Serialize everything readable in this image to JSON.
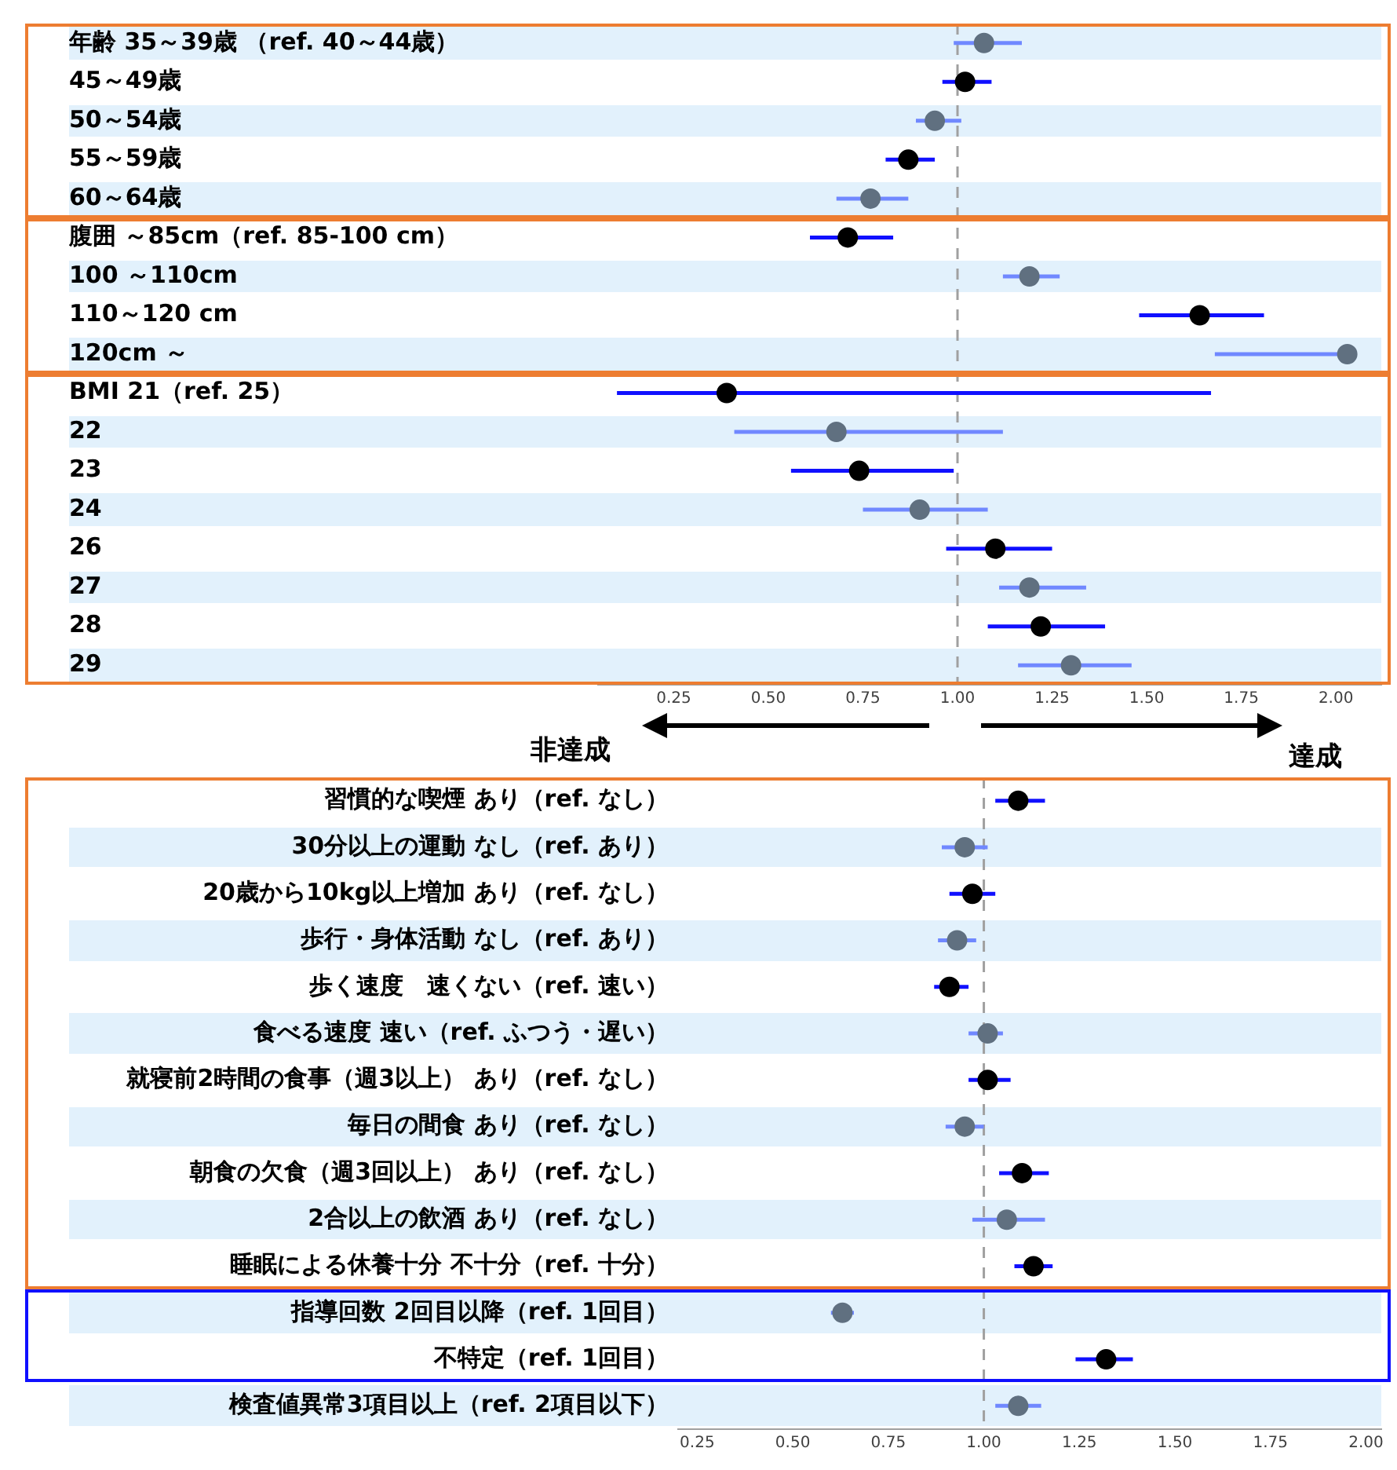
{
  "chart_data": [
    {
      "type": "scatter",
      "orientation": "horizontal",
      "categories": [
        "年齢 35～39歳 （ref. 40～44歳）",
        "45～49歳",
        "50～54歳",
        "55～59歳",
        "60～64歳",
        "腹囲 ～85cm（ref. 85-100 cm）",
        "100 ～110cm",
        "110～120 cm",
        "120cm ～",
        "BMI 21（ref. 25）",
        "22",
        "23",
        "24",
        "26",
        "27",
        "28",
        "29"
      ],
      "series": [
        {
          "color": "#000000",
          "values": [
            null,
            1.02,
            null,
            0.87,
            null,
            0.71,
            null,
            1.64,
            null,
            0.39,
            null,
            0.74,
            null,
            1.1,
            null,
            1.22,
            null
          ],
          "errors": [
            null,
            [
              0.96,
              1.09
            ],
            null,
            [
              0.81,
              0.94
            ],
            null,
            [
              0.61,
              0.83
            ],
            null,
            [
              1.48,
              1.81
            ],
            null,
            [
              0.1,
              1.67
            ],
            null,
            [
              0.56,
              0.99
            ],
            null,
            [
              0.97,
              1.25
            ],
            null,
            [
              1.08,
              1.39
            ],
            null
          ]
        },
        {
          "color": "#607080",
          "values": [
            1.07,
            null,
            0.94,
            null,
            0.77,
            null,
            1.19,
            null,
            2.03,
            null,
            0.68,
            null,
            0.9,
            null,
            1.19,
            null,
            1.3
          ],
          "errors": [
            [
              0.99,
              1.17
            ],
            null,
            [
              0.89,
              1.01
            ],
            null,
            [
              0.68,
              0.87
            ],
            null,
            [
              1.12,
              1.27
            ],
            null,
            [
              1.68,
              2.03
            ],
            null,
            [
              0.41,
              1.12
            ],
            null,
            [
              0.75,
              1.08
            ],
            null,
            [
              1.11,
              1.34
            ],
            null,
            [
              1.16,
              1.46
            ]
          ]
        }
      ],
      "xlim": [
        0.05,
        2.12
      ],
      "xticks": [
        {
          "value": 0.25,
          "label": "0.25"
        },
        {
          "value": 0.5,
          "label": "0.50"
        },
        {
          "value": 0.75,
          "label": "0.75"
        },
        {
          "value": 1,
          "label": "1.00"
        },
        {
          "value": 1.25,
          "label": "1.25"
        },
        {
          "value": 1.5,
          "label": "1.50"
        },
        {
          "value": 1.75,
          "label": "1.75"
        },
        {
          "value": 2,
          "label": "2.00"
        }
      ],
      "ref_lines": [
        {
          "axis": "x",
          "value": 1,
          "color": "#a0a0a0",
          "line_style": "dashed"
        }
      ],
      "annotations": [
        "非達成",
        "達成"
      ],
      "marker": "circle",
      "grid": false,
      "legend": false
    },
    {
      "type": "scatter",
      "orientation": "horizontal",
      "categories": [
        "習慣的な喫煙 あり（ref. なし）",
        "30分以上の運動 なし（ref. あり）",
        "20歳から10kg以上増加 あり（ref. なし）",
        "歩行・身体活動 なし（ref. あり）",
        "歩く速度　速くない（ref. 速い）",
        "食べる速度 速い（ref. ふつう・遅い）",
        "就寝前2時間の食事（週3以上） あり（ref. なし）",
        "毎日の間食 あり（ref. なし）",
        "朝食の欠食（週3回以上） あり（ref. なし）",
        "2合以上の飲酒 あり（ref. なし）",
        "睡眠による休養十分 不十分（ref. 十分）",
        "指導回数 2回目以降（ref. 1回目）",
        "不特定（ref. 1回目）",
        "検査値異常3項目以上（ref. 2項目以下）"
      ],
      "series": [
        {
          "color": "#000000",
          "values": [
            1.09,
            null,
            0.97,
            null,
            0.91,
            null,
            1.01,
            null,
            1.1,
            null,
            1.13,
            null,
            1.32,
            null
          ],
          "errors": [
            [
              1.03,
              1.16
            ],
            null,
            [
              0.91,
              1.03
            ],
            null,
            [
              0.87,
              0.96
            ],
            null,
            [
              0.96,
              1.07
            ],
            null,
            [
              1.04,
              1.17
            ],
            null,
            [
              1.08,
              1.18
            ],
            null,
            [
              1.24,
              1.39
            ],
            null
          ]
        },
        {
          "color": "#607080",
          "values": [
            null,
            0.95,
            null,
            0.93,
            null,
            1.01,
            null,
            0.95,
            null,
            1.06,
            null,
            0.63,
            null,
            1.09
          ],
          "errors": [
            null,
            [
              0.89,
              1.01
            ],
            null,
            [
              0.88,
              0.98
            ],
            null,
            [
              0.96,
              1.05
            ],
            null,
            [
              0.9,
              1.0
            ],
            null,
            [
              0.97,
              1.16
            ],
            null,
            [
              0.6,
              0.66
            ],
            null,
            [
              1.03,
              1.15
            ]
          ]
        }
      ],
      "xlim": [
        0.2,
        2.04
      ],
      "xticks": [
        {
          "value": 0.25,
          "label": "0.25"
        },
        {
          "value": 0.5,
          "label": "0.50"
        },
        {
          "value": 0.75,
          "label": "0.75"
        },
        {
          "value": 1,
          "label": "1.00"
        },
        {
          "value": 1.25,
          "label": "1.25"
        },
        {
          "value": 1.5,
          "label": "1.50"
        },
        {
          "value": 1.75,
          "label": "1.75"
        },
        {
          "value": 2,
          "label": "2.00"
        }
      ],
      "ref_lines": [
        {
          "axis": "x",
          "value": 1,
          "color": "#a0a0a0",
          "line_style": "dashed"
        }
      ],
      "marker": "circle",
      "grid": false,
      "legend": false
    }
  ]
}
